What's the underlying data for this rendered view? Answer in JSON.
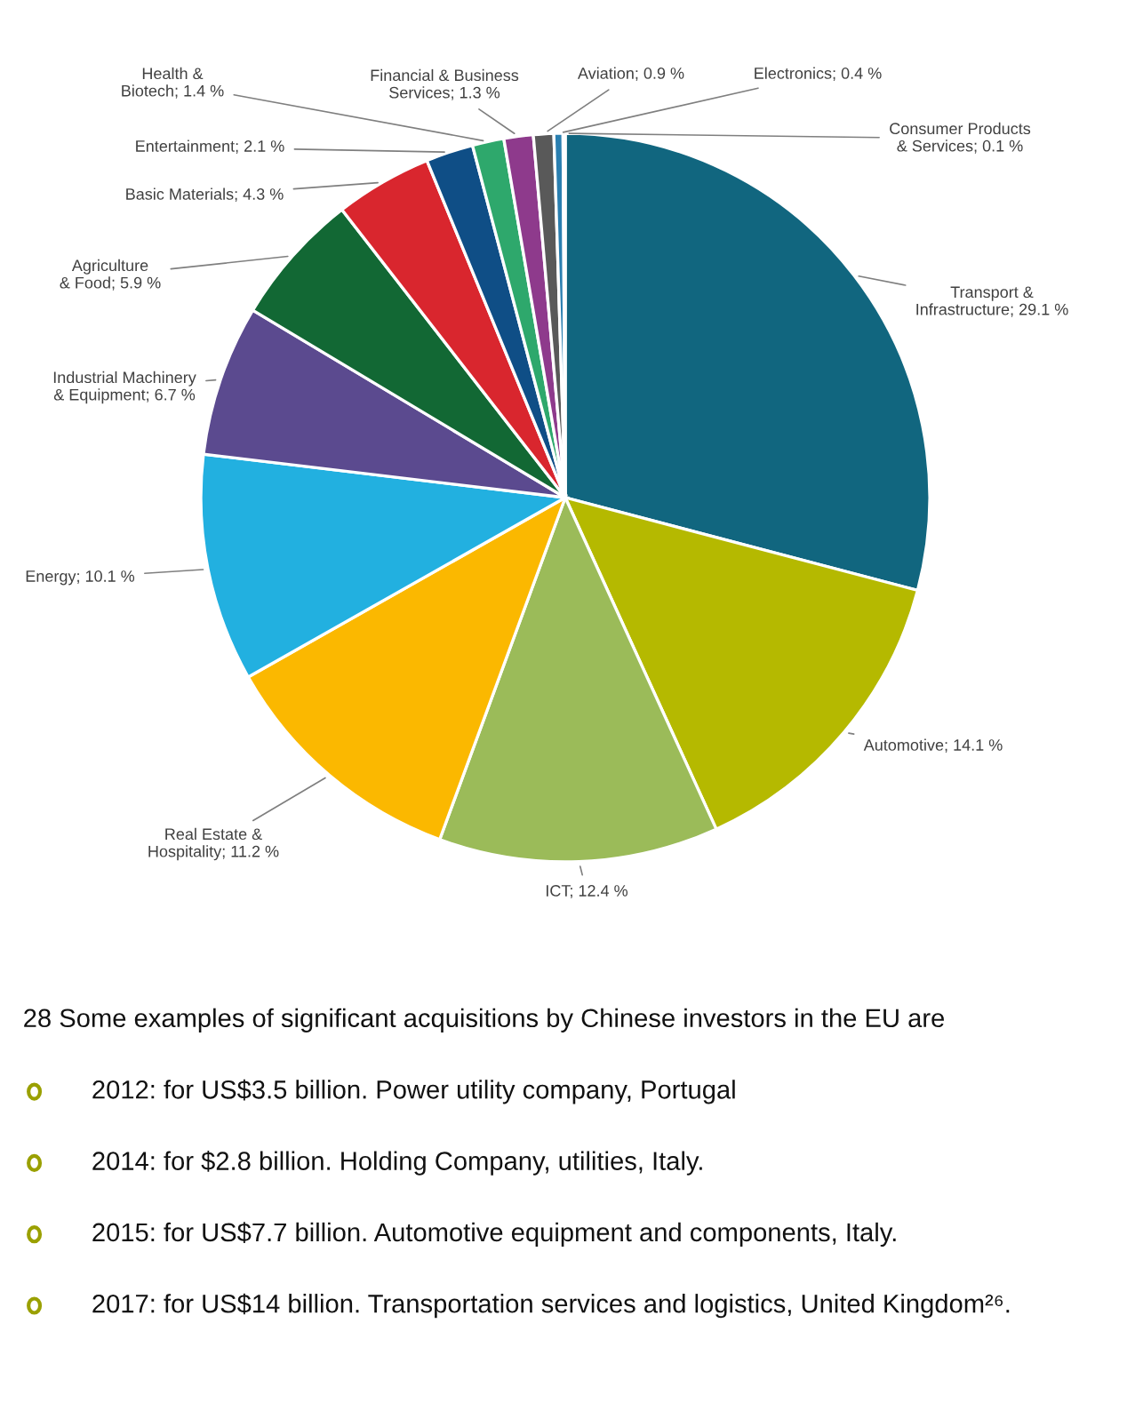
{
  "chart_data": {
    "type": "pie",
    "categories": [
      "Transport & Infrastructure",
      "Automotive",
      "ICT",
      "Real Estate & Hospitality",
      "Energy",
      "Industrial Machinery & Equipment",
      "Agriculture & Food",
      "Basic Materials",
      "Entertainment",
      "Health & Biotech",
      "Financial & Business Services",
      "Aviation",
      "Electronics",
      "Consumer Products & Services"
    ],
    "values": [
      29.1,
      14.1,
      12.4,
      11.2,
      10.1,
      6.7,
      5.9,
      4.3,
      2.1,
      1.4,
      1.3,
      0.9,
      0.4,
      0.1
    ],
    "value_labels": [
      "29.1 %",
      "14.1 %",
      "12.4 %",
      "11.2 %",
      "10.1 %",
      "6.7 %",
      "5.9 %",
      "4.3 %",
      "2.1 %",
      "1.4 %",
      "1.3 %",
      "0.9 %",
      "0.4 %",
      "0.1 %"
    ],
    "colors": [
      "#11667f",
      "#b5b900",
      "#9bbb59",
      "#fbb800",
      "#22b0e0",
      "#5b4a8f",
      "#126834",
      "#d9262e",
      "#0f4e86",
      "#2ea86c",
      "#8e3a8c",
      "#595959",
      "#2a7fb0",
      "#a0a0a0"
    ],
    "legend": false,
    "annotations": [
      "28 Some examples of significant acquisitions by Chinese investors in the EU are",
      "2012: for US$3.5 billion. Power utility company, Portugal",
      "2014: for $2.8 billion. Holding Company, utilities, Italy.",
      "2015: for US$7.7 billion. Automotive equipment and components, Italy.",
      "2017: for US$14 billion. Transportation services and logistics, United Kingdom²⁶."
    ]
  }
}
